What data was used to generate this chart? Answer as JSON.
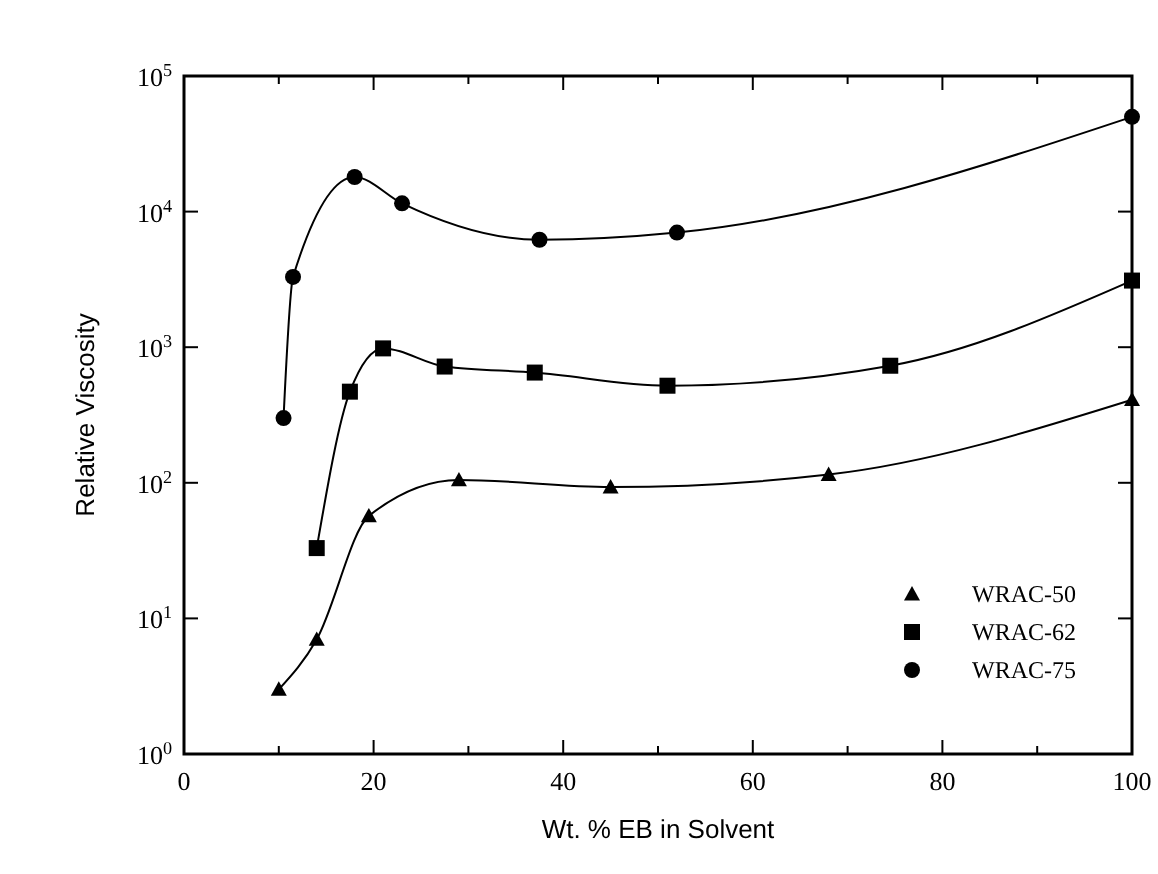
{
  "chart_data": {
    "type": "line",
    "xlabel": "Wt. % EB in Solvent",
    "ylabel": "Relative Viscosity",
    "log": "y",
    "grid": false,
    "legend": "bottom right",
    "line_style": "solid",
    "xlim": [
      0,
      100
    ],
    "xticks": [
      0,
      {
        "value": 10,
        "label": null
      },
      20,
      {
        "value": 30,
        "label": null
      },
      40,
      {
        "value": 50,
        "label": null
      },
      60,
      {
        "value": 70,
        "label": null
      },
      80,
      {
        "value": 90,
        "label": null
      },
      100
    ],
    "ylim": [
      1,
      100000
    ],
    "yticks": [
      {
        "value": 1,
        "label": "10$^{0}$"
      },
      {
        "value": 10,
        "label": "10$^{1}$"
      },
      {
        "value": 100,
        "label": "10$^{2}$"
      },
      {
        "value": 1000,
        "label": "10$^{3}$"
      },
      {
        "value": 10000,
        "label": "10$^{4}$"
      },
      {
        "value": 100000,
        "label": "10$^{5}$"
      }
    ],
    "series": [
      {
        "name": "WRAC-50",
        "color": "#000000",
        "marker": "triangle",
        "x": [
          10,
          14,
          19.5,
          29,
          45,
          68,
          100
        ],
        "values": [
          3,
          7,
          57,
          105,
          93,
          115,
          410
        ]
      },
      {
        "name": "WRAC-62",
        "color": "#000000",
        "marker": "square",
        "x": [
          14,
          17.5,
          21,
          27.5,
          37,
          51,
          74.5,
          100
        ],
        "values": [
          33,
          470,
          980,
          720,
          650,
          520,
          730,
          3100
        ]
      },
      {
        "name": "WRAC-75",
        "color": "#000000",
        "marker": "circle",
        "x": [
          10.5,
          11.5,
          18,
          23,
          37.5,
          52,
          100
        ],
        "values": [
          300,
          3300,
          18000,
          11500,
          6200,
          7000,
          50000
        ]
      }
    ]
  }
}
